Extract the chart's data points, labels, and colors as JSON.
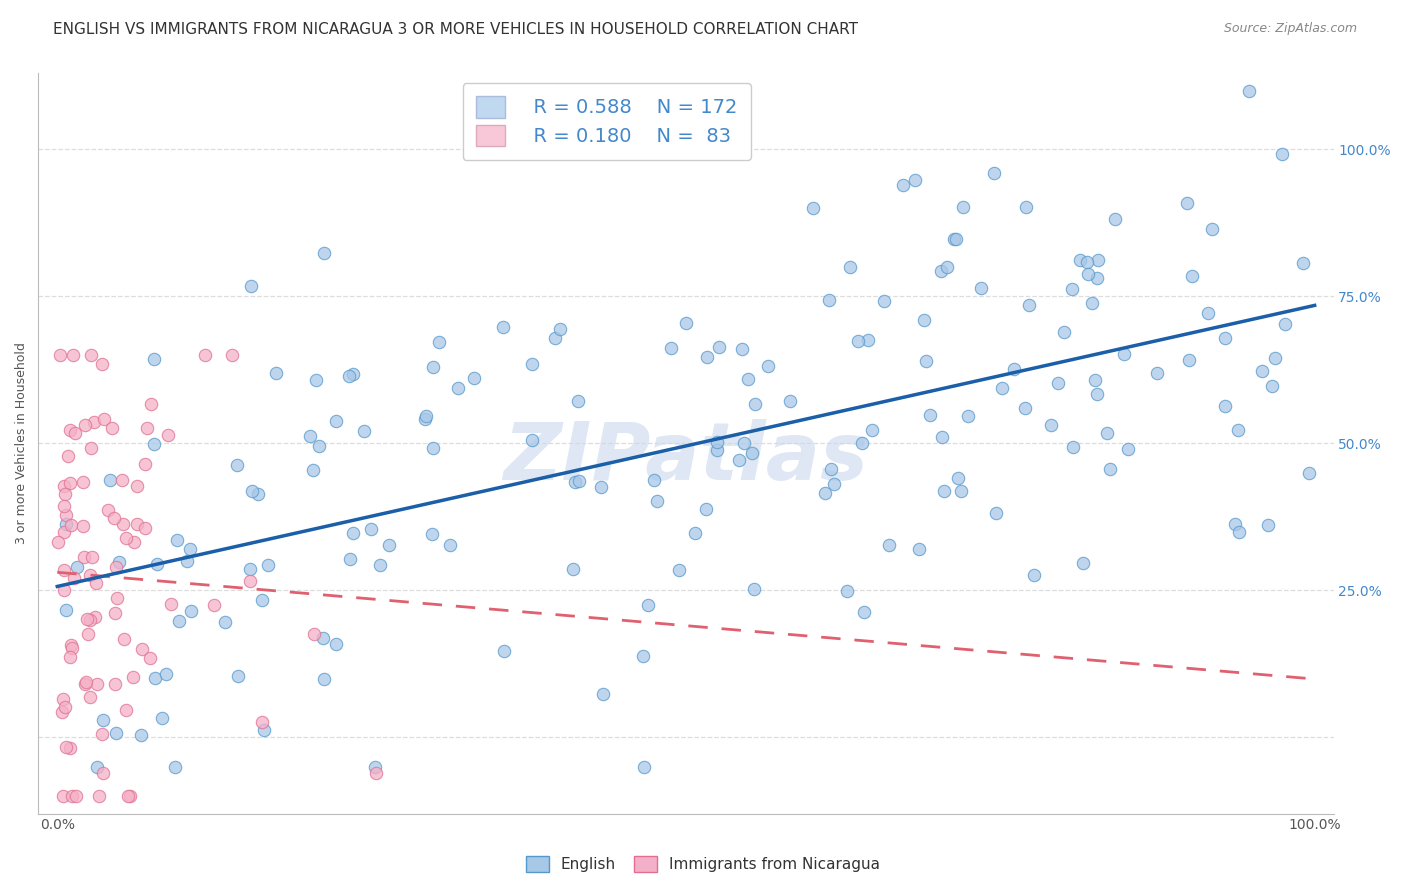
{
  "title": "ENGLISH VS IMMIGRANTS FROM NICARAGUA 3 OR MORE VEHICLES IN HOUSEHOLD CORRELATION CHART",
  "source": "Source: ZipAtlas.com",
  "ylabel": "3 or more Vehicles in Household",
  "english_color": "#a8c8e8",
  "english_edge_color": "#5599cc",
  "nicaragua_color": "#f4b0c8",
  "nicaragua_edge_color": "#e07090",
  "trend_english_color": "#1a5fa8",
  "trend_nicaragua_color": "#e06070",
  "legend_box_english": "#c0d8f0",
  "legend_box_nicaragua": "#f8c8d8",
  "R_english": 0.588,
  "N_english": 172,
  "R_nicaragua": 0.18,
  "N_nicaragua": 83,
  "watermark": "ZIPatlas",
  "background_color": "#ffffff",
  "grid_color": "#dddddd",
  "title_fontsize": 11,
  "axis_label_fontsize": 9,
  "tick_fontsize": 10,
  "legend_fontsize": 14,
  "source_fontsize": 9,
  "right_label_color": "#4488cc"
}
